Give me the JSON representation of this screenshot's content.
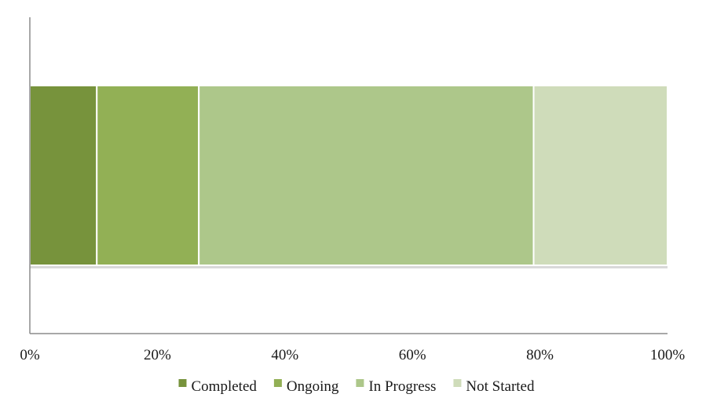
{
  "chart_data": {
    "type": "bar",
    "orientation": "horizontal",
    "stacked": "percent",
    "categories": [
      ""
    ],
    "series": [
      {
        "name": "Completed",
        "values": [
          10.5
        ],
        "color": "#77933c"
      },
      {
        "name": "Ongoing",
        "values": [
          16
        ],
        "color": "#92b055"
      },
      {
        "name": "In Progress",
        "values": [
          52.5
        ],
        "color": "#adc78a"
      },
      {
        "name": "Not Started",
        "values": [
          21
        ],
        "color": "#cfdcba"
      }
    ],
    "xlim": [
      0,
      100
    ],
    "xticks": [
      "0%",
      "20%",
      "40%",
      "60%",
      "80%",
      "100%"
    ],
    "title": "",
    "xlabel": "",
    "ylabel": "",
    "grid": false,
    "legend_position": "bottom"
  }
}
